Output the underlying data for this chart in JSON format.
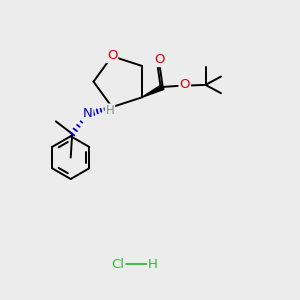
{
  "background_color": "#ececec",
  "atom_colors": {
    "O": "#dd0000",
    "N": "#0000cc",
    "C": "#000000",
    "H": "#888888",
    "Cl": "#33bb33"
  },
  "bond_color": "#000000",
  "lw": 1.4,
  "fs": 8.5
}
